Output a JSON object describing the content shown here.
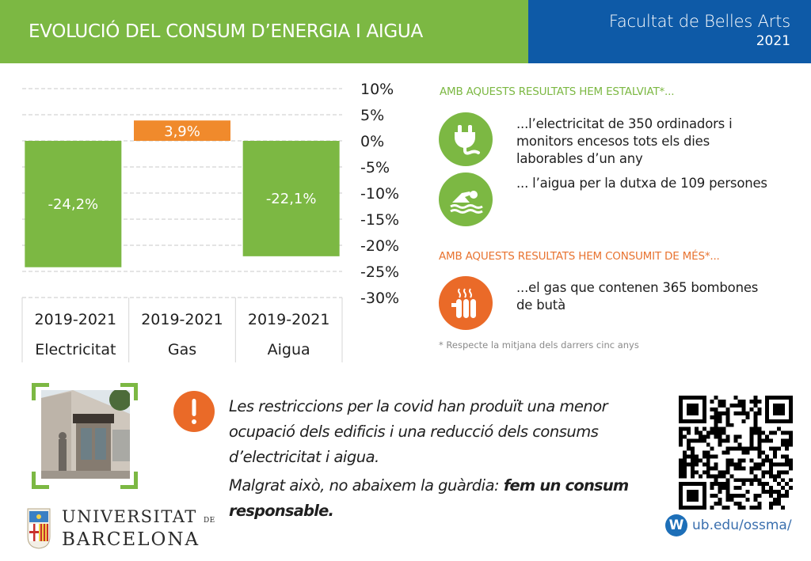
{
  "header": {
    "title": "EVOLUCIÓ DEL CONSUM D’ENERGIA I AIGUA",
    "faculty": "Facultat de Belles Arts",
    "year": "2021"
  },
  "colors": {
    "green": "#7cb843",
    "orange": "#ea6a28",
    "blue": "#0e5aa7",
    "gridline": "#c8c8c8"
  },
  "chart_data": {
    "type": "bar",
    "title": "EVOLUCIÓ DEL CONSUM D’ENERGIA I AIGUA",
    "xlabel": "",
    "ylabel": "",
    "categories": [
      {
        "period": "2019-2021",
        "name": "Electricitat"
      },
      {
        "period": "2019-2021",
        "name": "Gas"
      },
      {
        "period": "2019-2021",
        "name": "Aigua"
      }
    ],
    "values": [
      -24.2,
      3.9,
      -22.1
    ],
    "value_labels": [
      "-24,2%",
      "3,9%",
      "-22,1%"
    ],
    "bar_colors": [
      "#7cb843",
      "#f08a2c",
      "#7cb843"
    ],
    "ylim": [
      -30,
      10
    ],
    "yticks": [
      10,
      5,
      0,
      -5,
      -10,
      -15,
      -20,
      -25,
      -30
    ],
    "ytick_labels": [
      "10%",
      "5%",
      "0%",
      "-5%",
      "-10%",
      "-15%",
      "-20%",
      "-25%",
      "-30%"
    ],
    "y_axis_position": "right",
    "grid": true,
    "grid_style": "dashed",
    "legend": "none"
  },
  "savings": {
    "title": "AMB AQUESTS RESULTATS HEM ESTALVIAT*...",
    "items": [
      {
        "icon": "plug-icon",
        "text": "...l’electricitat de 350 ordinadors i monitors encesos tots els dies laborables d’un any"
      },
      {
        "icon": "swimmer-icon",
        "text": "... l’aigua per la dutxa de 109 persones"
      }
    ]
  },
  "extra": {
    "title": "AMB AQUESTS RESULTATS HEM CONSUMIT DE MÉS*...",
    "items": [
      {
        "icon": "radiator-icon",
        "text": "...el gas que contenen 365 bombones de butà"
      }
    ]
  },
  "footnote": "* Respecte la mitjana dels darrers cinc anys",
  "message": {
    "paragraph1": "Les restriccions per la covid han produït una menor ocupació dels edificis i una reducció dels consums d’electricitat i aigua.",
    "paragraph2_prefix": "Malgrat això, no abaixem la guàrdia: ",
    "paragraph2_emphasis": "fem un consum responsable."
  },
  "logo": {
    "line1": "UNIVERSITAT",
    "line1_suffix": "DE",
    "line2": "BARCELONA"
  },
  "web": {
    "icon_letter": "W",
    "url": "ub.edu/ossma/"
  }
}
